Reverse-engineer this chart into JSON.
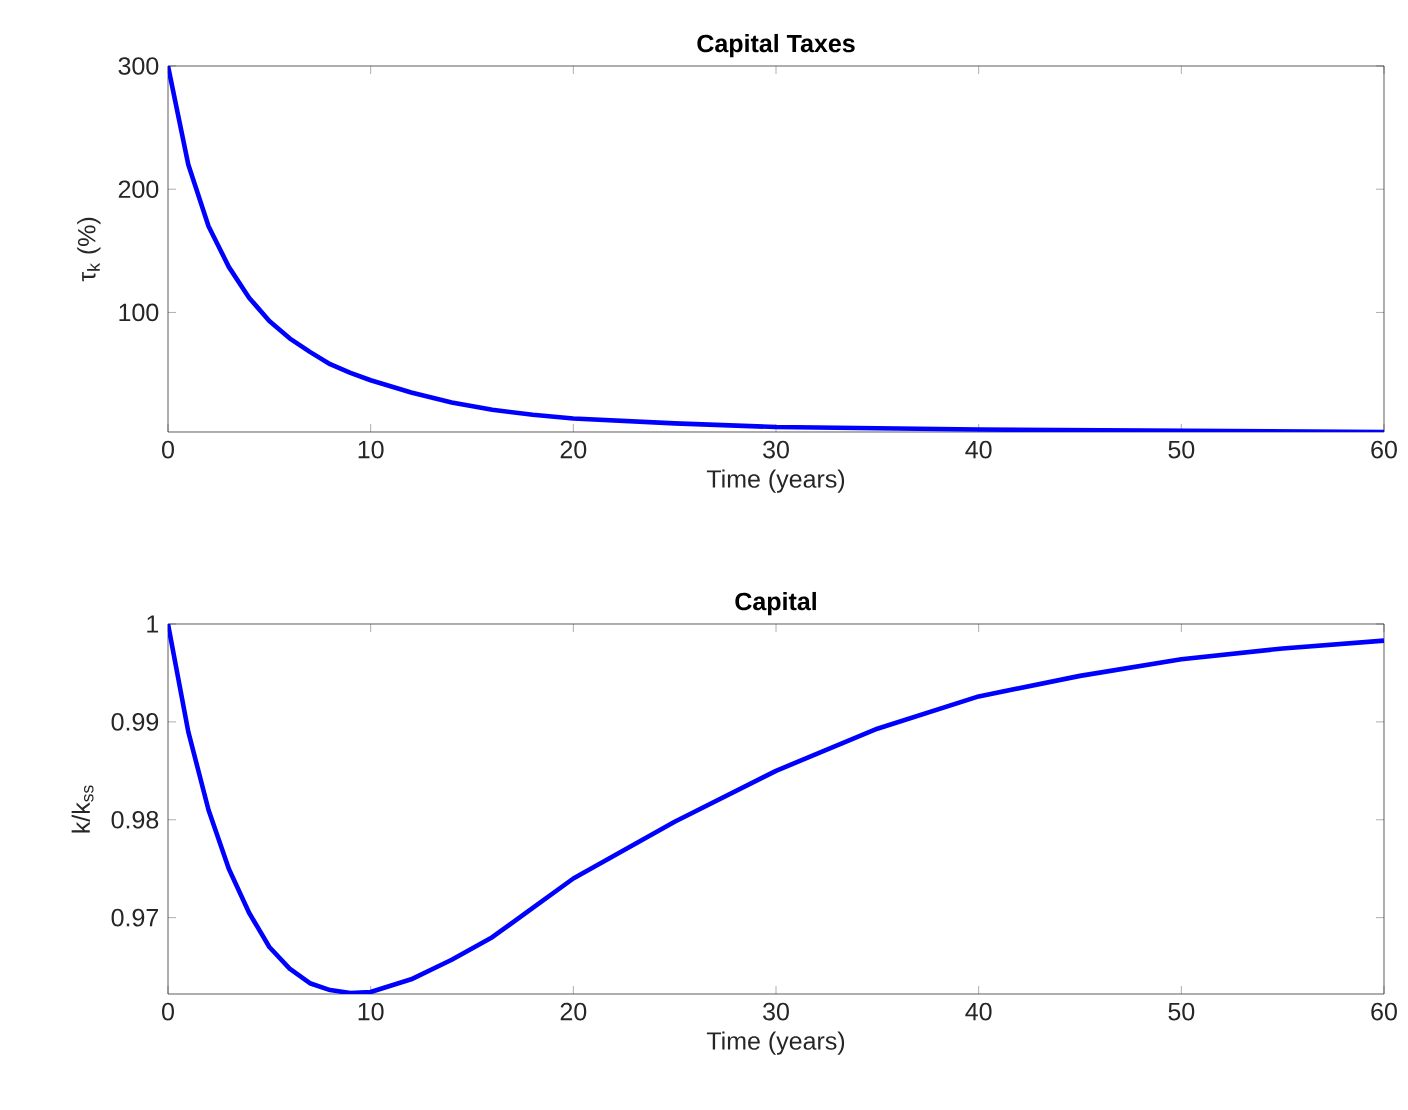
{
  "chart_data": [
    {
      "type": "line",
      "title": "Capital Taxes",
      "xlabel": "Time (years)",
      "ylabel": "τ$_{k}$ (%)",
      "color": "#0000ff",
      "x": [
        0,
        1,
        2,
        3,
        4,
        5,
        6,
        7,
        8,
        9,
        10,
        12,
        14,
        16,
        18,
        20,
        25,
        30,
        40,
        50,
        60
      ],
      "values": [
        300,
        220,
        170,
        137,
        112,
        93,
        79,
        68,
        58,
        51,
        45,
        35,
        27,
        21,
        17,
        14,
        10,
        7,
        5,
        4,
        3
      ],
      "xlim": [
        0,
        60
      ],
      "ylim": [
        3,
        300
      ],
      "xticks": [
        0,
        10,
        20,
        30,
        40,
        50,
        60
      ],
      "yticks": [
        100,
        200,
        300
      ]
    },
    {
      "type": "line",
      "title": "Capital",
      "xlabel": "Time (years)",
      "ylabel": "k/k$_{ss}$",
      "color": "#0000ff",
      "x": [
        0,
        1,
        2,
        3,
        4,
        5,
        6,
        7,
        8,
        9,
        10,
        12,
        14,
        16,
        18,
        20,
        25,
        30,
        35,
        40,
        45,
        50,
        55,
        60
      ],
      "values": [
        1,
        0.989,
        0.981,
        0.975,
        0.9705,
        0.967,
        0.9648,
        0.9633,
        0.9626,
        0.9623,
        0.9624,
        0.9637,
        0.9657,
        0.968,
        0.971,
        0.974,
        0.9798,
        0.985,
        0.9893,
        0.9926,
        0.9947,
        0.9964,
        0.9975,
        0.9983
      ],
      "xlim": [
        0,
        60
      ],
      "ylim": [
        0.9622,
        1
      ],
      "xticks": [
        0,
        10,
        20,
        30,
        40,
        50,
        60
      ],
      "yticks": [
        0.97,
        0.98,
        0.99,
        1
      ]
    }
  ]
}
